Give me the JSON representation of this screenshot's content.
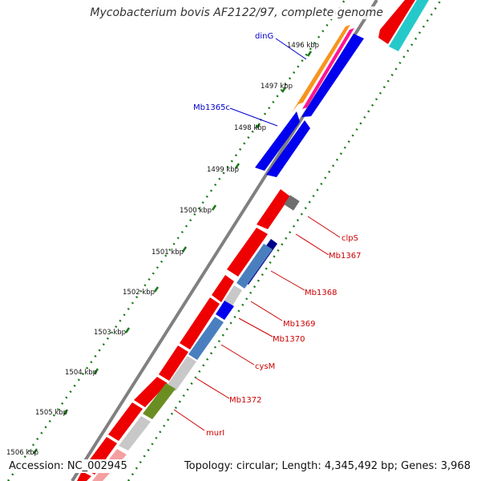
{
  "title": "Mycobacterium bovis AF2122/97, complete genome",
  "footer": {
    "accession": "Accession: NC_002945",
    "topology": "Topology: circular; Length: 4,345,492 bp; Genes: 3,968"
  },
  "kbp_ticks": [
    "1496 kbp",
    "1497 kbp",
    "1498 kbp",
    "1499 kbp",
    "1500 kbp",
    "1501 kbp",
    "1502 kbp",
    "1503 kbp",
    "1504 kbp",
    "1505 kbp",
    "1506 kbp"
  ],
  "forward_labels": [
    "dinG",
    "Mb1365c"
  ],
  "reverse_labels": [
    "clpS",
    "Mb1367",
    "Mb1368",
    "Mb1369",
    "Mb1370",
    "cysM",
    "Mb1372",
    "murI"
  ],
  "colors": {
    "forward_label": "#0000cc",
    "reverse_label": "#cc0000",
    "backbone": "#808080",
    "blue": "#0000ee",
    "red": "#ee0000",
    "orange": "#f7941d",
    "pink": "#ff1493",
    "cyan": "#26c9c9",
    "steelblue": "#4a7fbf",
    "navy": "#00008b",
    "lightgray": "#c8c8c8",
    "darkgray": "#6e6e6e",
    "olive": "#6b8e23",
    "dots": "#1a7a1a"
  }
}
